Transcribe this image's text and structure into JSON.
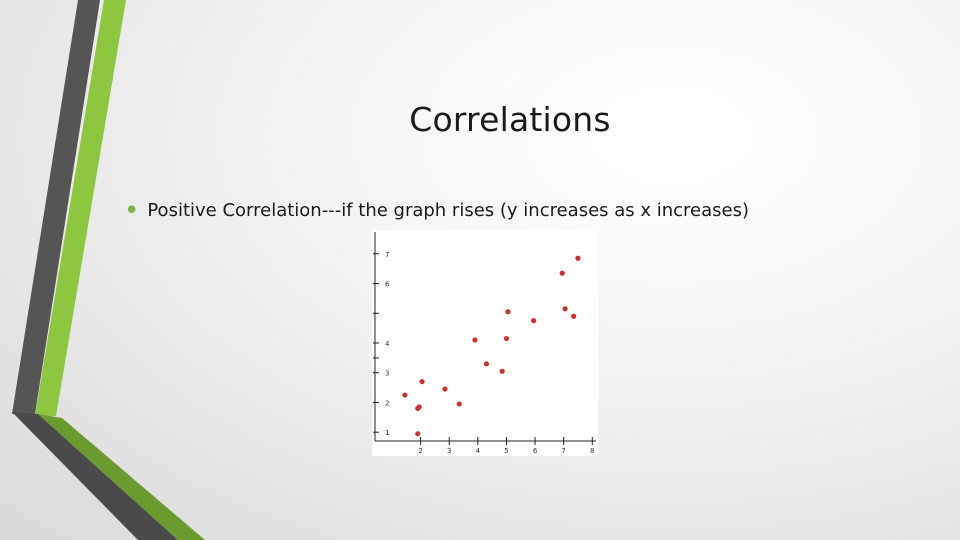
{
  "slide": {
    "title": "Correlations",
    "bullet": "Positive Correlation---if the graph rises (y increases as x increases)"
  },
  "colors": {
    "accent_green": "#7cb342",
    "dark_bar": "#555555",
    "point_color": "#d32f2f"
  },
  "icons": {
    "bullet": "bullet-dot"
  },
  "chart_data": {
    "type": "scatter",
    "title": "",
    "xlabel": "",
    "ylabel": "",
    "xlim": [
      0.3,
      8.2
    ],
    "ylim": [
      0.2,
      7.8
    ],
    "x_ticks": [
      "2",
      "3",
      "4",
      "5",
      "6",
      "7",
      "8"
    ],
    "y_ticks": [
      "1",
      "2",
      "3",
      "",
      "4",
      "",
      "6",
      "7"
    ],
    "grid": false,
    "legend": "none",
    "points": [
      {
        "x": 1.45,
        "y": 2.25
      },
      {
        "x": 1.9,
        "y": 1.8
      },
      {
        "x": 1.95,
        "y": 1.85
      },
      {
        "x": 1.9,
        "y": 0.95
      },
      {
        "x": 2.05,
        "y": 2.7
      },
      {
        "x": 2.85,
        "y": 2.45
      },
      {
        "x": 3.35,
        "y": 1.95
      },
      {
        "x": 3.9,
        "y": 4.1
      },
      {
        "x": 4.3,
        "y": 3.3
      },
      {
        "x": 4.85,
        "y": 3.05
      },
      {
        "x": 5.0,
        "y": 4.15
      },
      {
        "x": 5.05,
        "y": 5.05
      },
      {
        "x": 5.95,
        "y": 4.75
      },
      {
        "x": 6.95,
        "y": 6.35
      },
      {
        "x": 7.05,
        "y": 5.15
      },
      {
        "x": 7.35,
        "y": 4.9
      },
      {
        "x": 7.5,
        "y": 6.85
      }
    ]
  }
}
